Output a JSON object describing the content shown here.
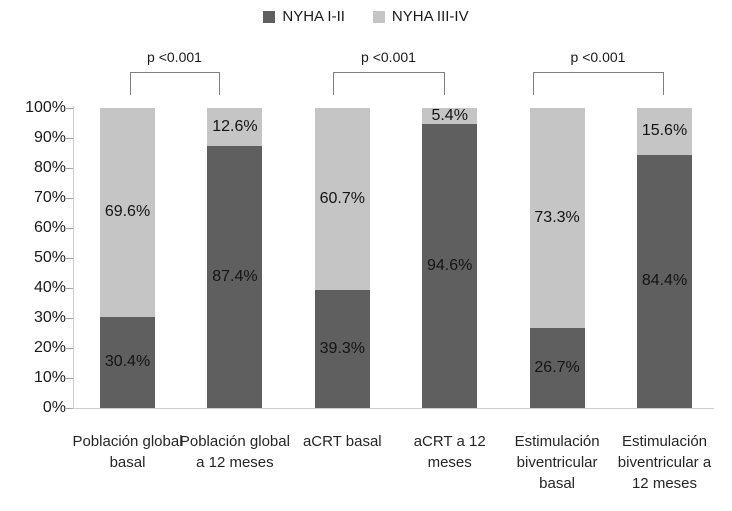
{
  "chart_data": {
    "type": "bar",
    "stacked": true,
    "orientation": "vertical",
    "title": "",
    "xlabel": "",
    "ylabel": "",
    "ylim": [
      0,
      100
    ],
    "grid": false,
    "legend_position": "top",
    "value_suffix": "%",
    "categories": [
      "Población global basal",
      "Población global a 12 meses",
      "aCRT basal",
      "aCRT a 12 meses",
      "Estimulación biventricular basal",
      "Estimulación biventricular a 12 meses"
    ],
    "series": [
      {
        "name": "NYHA I-II",
        "color": "#5f5f5f",
        "values": [
          30.4,
          87.4,
          39.3,
          94.6,
          26.7,
          84.4
        ]
      },
      {
        "name": "NYHA III-IV",
        "color": "#c5c5c5",
        "values": [
          69.6,
          12.6,
          60.7,
          5.4,
          73.3,
          15.6
        ]
      }
    ],
    "yticks": [
      "0%",
      "10%",
      "20%",
      "30%",
      "40%",
      "50%",
      "60%",
      "70%",
      "80%",
      "90%",
      "100%"
    ],
    "annotations": [
      {
        "label": "p <0.001",
        "between": [
          0,
          1
        ]
      },
      {
        "label": "p <0.001",
        "between": [
          2,
          3
        ]
      },
      {
        "label": "p <0.001",
        "between": [
          4,
          5
        ]
      }
    ],
    "colors": {
      "axis_line": "#cfcfcf",
      "tick_mark": "#a6a6a6",
      "bracket": "#7f7f7f",
      "text": "#1a1a1a"
    }
  }
}
